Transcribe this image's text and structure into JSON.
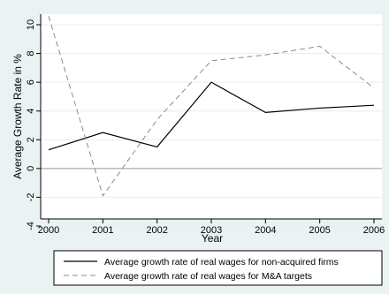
{
  "chart_data": {
    "type": "line",
    "xlabel": "Year",
    "ylabel": "Average Growth Rate in %",
    "xlim": [
      2000,
      2006
    ],
    "ylim": [
      -4,
      10
    ],
    "x": [
      2000,
      2001,
      2002,
      2003,
      2004,
      2005,
      2006
    ],
    "x_tick_labels": [
      "2000",
      "2001",
      "2002",
      "2003",
      "2004",
      "2005",
      "2006"
    ],
    "y_ticks": [
      -4,
      -2,
      0,
      2,
      4,
      6,
      8,
      10
    ],
    "y_tick_labels": [
      "-4",
      "-2",
      "0",
      "2",
      "4",
      "6",
      "8",
      "10"
    ],
    "zero_line": true,
    "grid": "horizontal",
    "legend_position": "bottom",
    "series": [
      {
        "name": "Average growth rate of real wages for non-acquired firms",
        "style": "solid",
        "color": "#000000",
        "values": [
          1.3,
          2.5,
          1.5,
          6.0,
          3.9,
          4.2,
          4.4
        ]
      },
      {
        "name": "Average growth rate of real wages for M&A targets",
        "style": "dashed",
        "color": "#8a8a8a",
        "values": [
          10.6,
          -1.9,
          3.4,
          7.5,
          7.9,
          8.5,
          5.6
        ]
      }
    ]
  },
  "colors": {
    "outer_background": "#eaf2f3",
    "plot_background": "#ffffff",
    "gridline": "#e6eef0",
    "zero_line": "#9a9a9a"
  }
}
